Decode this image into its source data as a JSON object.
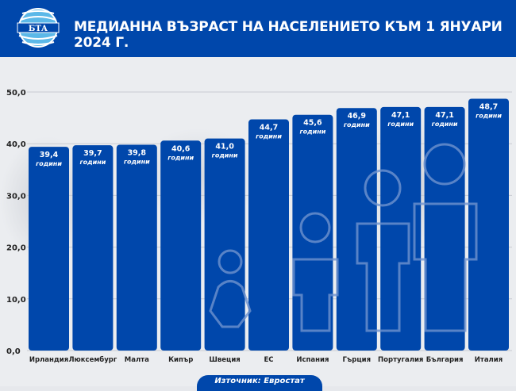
{
  "header": {
    "logo_text": "БТА",
    "title": "МЕДИАННА ВЪЗРАСТ НА НАСЕЛЕНИЕТО КЪМ 1 ЯНУАРИ 2024 Г."
  },
  "source": "Източник: Евростат",
  "colors": {
    "bar": "#0047ab",
    "header": "#0047ab"
  },
  "chart_data": {
    "type": "bar",
    "title": "МЕДИАННА ВЪЗРАСТ НА НАСЕЛЕНИЕТО КЪМ 1 ЯНУАРИ 2024 Г.",
    "categories": [
      "Ирландия",
      "Люксембург",
      "Малта",
      "Кипър",
      "Швеция",
      "ЕС",
      "Испания",
      "Гърция",
      "Португалия",
      "България",
      "Италия"
    ],
    "values": [
      39.4,
      39.7,
      39.8,
      40.6,
      41.0,
      44.7,
      45.6,
      46.9,
      47.1,
      47.1,
      48.7
    ],
    "value_labels": [
      "39,4",
      "39,7",
      "39,8",
      "40,6",
      "41,0",
      "44,7",
      "45,6",
      "46,9",
      "47,1",
      "47,1",
      "48,7"
    ],
    "unit_label": "години",
    "yticks": [
      "0,0",
      "10,0",
      "20,0",
      "30,0",
      "40,0",
      "50,0"
    ],
    "ylim": [
      0,
      50
    ],
    "grid": true
  }
}
